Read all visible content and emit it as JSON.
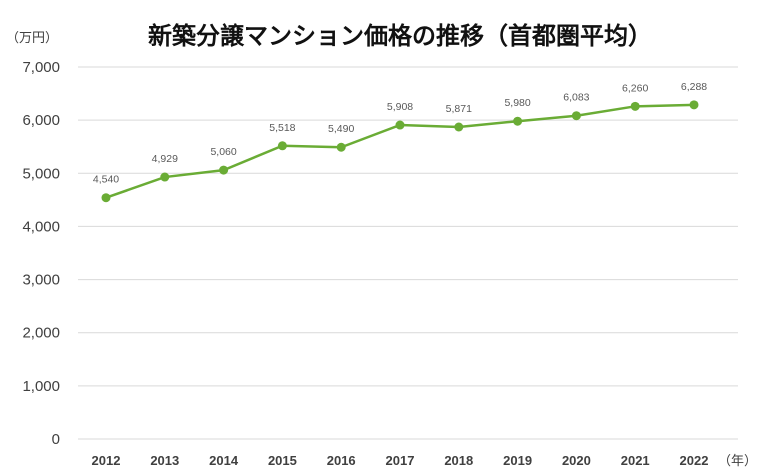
{
  "chart_data": {
    "type": "line",
    "title": "新築分譲マンション価格の推移（首都圏平均）",
    "ylabel": "（万円）",
    "xlabel": "（年）",
    "categories": [
      "2012",
      "2013",
      "2014",
      "2015",
      "2016",
      "2017",
      "2018",
      "2019",
      "2020",
      "2021",
      "2022"
    ],
    "values": [
      4540,
      4929,
      5060,
      5518,
      5490,
      5908,
      5871,
      5980,
      6083,
      6260,
      6288
    ],
    "data_labels": [
      "4,540",
      "4,929",
      "5,060",
      "5,518",
      "5,490",
      "5,908",
      "5,871",
      "5,980",
      "6,083",
      "6,260",
      "6,288"
    ],
    "ylim": [
      0,
      7000
    ],
    "yticks": [
      0,
      1000,
      2000,
      3000,
      4000,
      5000,
      6000,
      7000
    ],
    "ytick_labels": [
      "0",
      "1,000",
      "2,000",
      "3,000",
      "4,000",
      "5,000",
      "6,000",
      "7,000"
    ],
    "grid": true,
    "line_color": "#6aac35",
    "grid_color": "#d9d9d9"
  }
}
